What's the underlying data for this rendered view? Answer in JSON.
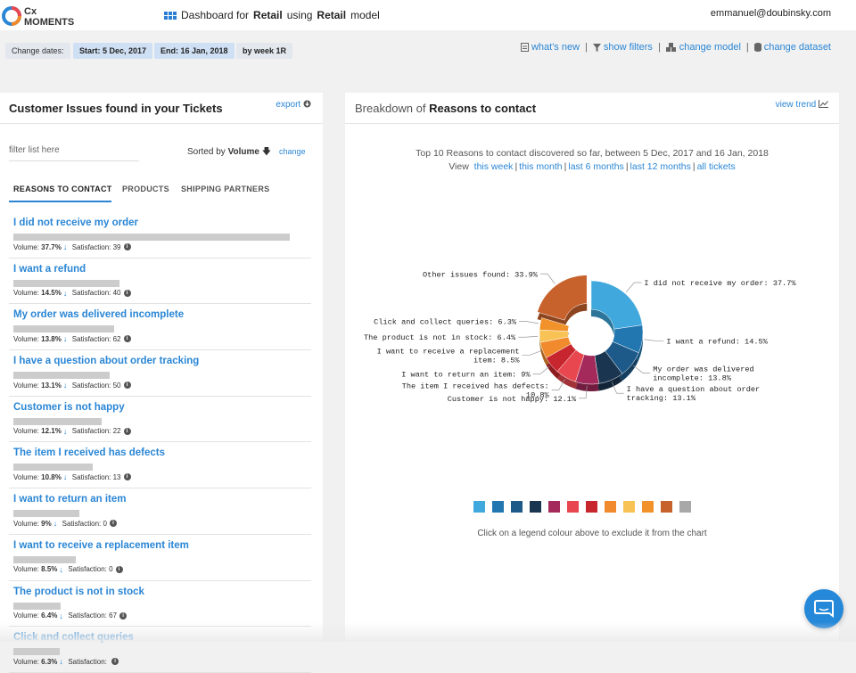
{
  "header": {
    "logo_text_1": "Cx",
    "logo_text_2": "MOMENTS",
    "dashboard_prefix": "Dashboard for",
    "dashboard_industry": "Retail",
    "dashboard_middle": "using",
    "dashboard_model": "Retail",
    "dashboard_suffix": "model",
    "user_email": "emmanuel@doubinsky.com"
  },
  "datebar": {
    "change_dates_label": "Change dates:",
    "start_label": "Start: 5 Dec, 2017",
    "end_label": "End: 16 Jan, 2018",
    "granularity_label": "by week 1R",
    "links": [
      "what's new",
      "show filters",
      "change model",
      "change dataset"
    ]
  },
  "left_panel": {
    "title": "Customer Issues found in your Tickets",
    "export_label": "export",
    "filter_placeholder": "filter list here",
    "sorted_prefix": "Sorted by",
    "sorted_field": "Volume",
    "change_label": "change",
    "tabs": [
      "REASONS TO CONTACT",
      "PRODUCTS",
      "SHIPPING PARTNERS"
    ],
    "volume_label": "Volume:",
    "satisfaction_label": "Satisfaction:",
    "issues": [
      {
        "title": "I did not receive my order",
        "volume": "37.7%",
        "volume_frac": 0.377,
        "satisfaction": "39"
      },
      {
        "title": "I want a refund",
        "volume": "14.5%",
        "volume_frac": 0.145,
        "satisfaction": "40"
      },
      {
        "title": "My order was delivered incomplete",
        "volume": "13.8%",
        "volume_frac": 0.138,
        "satisfaction": "62"
      },
      {
        "title": "I have a question about order tracking",
        "volume": "13.1%",
        "volume_frac": 0.131,
        "satisfaction": "50"
      },
      {
        "title": "Customer is not happy",
        "volume": "12.1%",
        "volume_frac": 0.121,
        "satisfaction": "22"
      },
      {
        "title": "The item I received has defects",
        "volume": "10.8%",
        "volume_frac": 0.108,
        "satisfaction": "13"
      },
      {
        "title": "I want to return an item",
        "volume": "9%",
        "volume_frac": 0.09,
        "satisfaction": "0"
      },
      {
        "title": "I want to receive a replacement item",
        "volume": "8.5%",
        "volume_frac": 0.085,
        "satisfaction": "0"
      },
      {
        "title": "The product is not in stock",
        "volume": "6.4%",
        "volume_frac": 0.064,
        "satisfaction": "67"
      },
      {
        "title": "Click and collect queries",
        "volume": "6.3%",
        "volume_frac": 0.063,
        "satisfaction": ""
      }
    ]
  },
  "right_panel": {
    "title_prefix": "Breakdown of",
    "title_bold": "Reasons to contact",
    "view_trend_label": "view trend",
    "subtitle": "Top 10 Reasons to contact discovered so far, between 5 Dec, 2017 and 16 Jan, 2018",
    "view_label": "View",
    "view_links": [
      "this week",
      "this month",
      "last 6 months",
      "last 12 months",
      "all tickets"
    ],
    "legend_hint": "Click on a legend colour above to exclude it from the chart"
  },
  "chart_data": {
    "type": "pie",
    "slices": [
      {
        "label": "I did not receive my order: 37.7%",
        "value": 37.7,
        "color": "#40a8dc",
        "label_lines": [
          "I did not receive my order: 37.7%"
        ]
      },
      {
        "label": "I want a refund: 14.5%",
        "value": 14.5,
        "color": "#2377b0",
        "label_lines": [
          "I want a refund: 14.5%"
        ]
      },
      {
        "label": "My order was delivered incomplete: 13.8%",
        "value": 13.8,
        "color": "#1d5a8a",
        "label_lines": [
          "My order was delivered",
          "incomplete: 13.8%"
        ]
      },
      {
        "label": "I have a question about order tracking: 13.1%",
        "value": 13.1,
        "color": "#1a3550",
        "label_lines": [
          "I have a question about order",
          "tracking: 13.1%"
        ]
      },
      {
        "label": "Customer is not happy: 12.1%",
        "value": 12.1,
        "color": "#a32a5a",
        "label_lines": [
          "Customer is not happy: 12.1%"
        ]
      },
      {
        "label": "The item I received has defects: 10.8%",
        "value": 10.8,
        "color": "#e8474f",
        "label_lines": [
          "The item I received has defects:",
          "10.8%"
        ]
      },
      {
        "label": "I want to return an item: 9%",
        "value": 9.0,
        "color": "#c8262e",
        "label_lines": [
          "I want to return an item: 9%"
        ]
      },
      {
        "label": "I want to receive a replacement item: 8.5%",
        "value": 8.5,
        "color": "#f08a2c",
        "label_lines": [
          "I want to receive a replacement",
          "item: 8.5%"
        ]
      },
      {
        "label": "The product is not in stock: 6.4%",
        "value": 6.4,
        "color": "#f8c254",
        "label_lines": [
          "The product is not in stock: 6.4%"
        ]
      },
      {
        "label": "Click and collect queries: 6.3%",
        "value": 6.3,
        "color": "#f2922a",
        "label_lines": [
          "Click and collect queries: 6.3%"
        ]
      },
      {
        "label": "Other issues found: 33.9%",
        "value": 33.9,
        "color": "#c8622c",
        "label_lines": [
          "Other issues found: 33.9%"
        ],
        "exploded": true
      }
    ],
    "legend_colors": [
      "#40a8dc",
      "#2377b0",
      "#1d5a8a",
      "#1a3550",
      "#a32a5a",
      "#e8474f",
      "#c8262e",
      "#f08a2c",
      "#f8c254",
      "#f2922a",
      "#c8622c",
      "#a8a8a8"
    ]
  }
}
